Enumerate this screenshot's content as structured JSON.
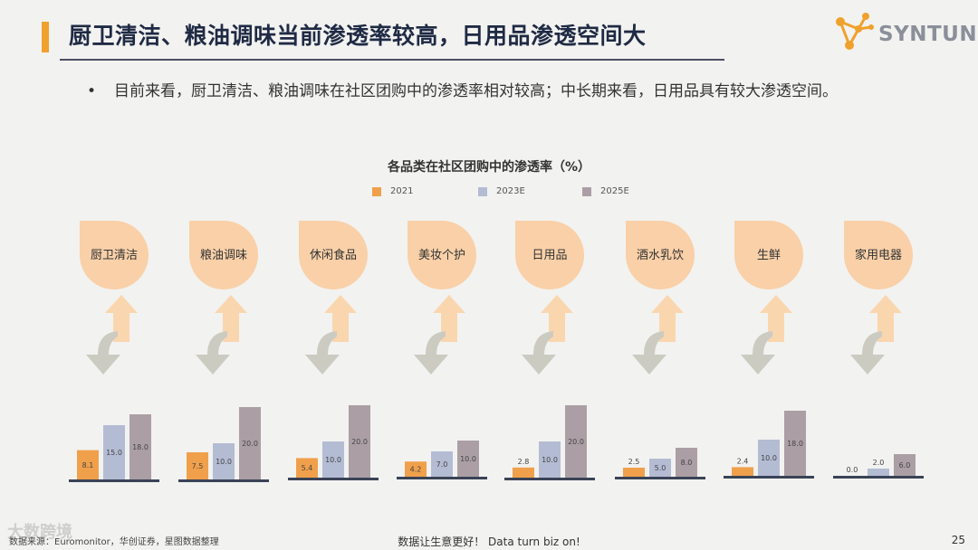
{
  "header": {
    "title": "厨卫清洁、粮油调味当前渗透率较高，日用品渗透空间大",
    "logo_text": "SYNTUN"
  },
  "bullet": {
    "symbol": "•",
    "text": "目前来看，厨卫清洁、粮油调味在社区团购中的渗透率相对较高；中长期来看，日用品具有较大渗透空间。"
  },
  "chart_data": {
    "type": "bar",
    "title": "各品类在社区团购中的渗透率（%）",
    "categories": [
      "厨卫清洁",
      "粮油调味",
      "休闲食品",
      "美妆个护",
      "日用品",
      "酒水乳饮",
      "生鲜",
      "家用电器"
    ],
    "series": [
      {
        "name": "2021",
        "values": [
          8.1,
          7.5,
          5.4,
          4.2,
          2.8,
          2.5,
          2.4,
          0.0
        ],
        "color": "#f0a04b"
      },
      {
        "name": "2023E",
        "values": [
          15.0,
          10.0,
          10.0,
          7.0,
          10.0,
          5.0,
          10.0,
          2.0
        ],
        "color": "#b4bcd4"
      },
      {
        "name": "2025E",
        "values": [
          18.0,
          20.0,
          20.0,
          10.0,
          20.0,
          8.0,
          18.0,
          6.0
        ],
        "color": "#ab9fa5"
      }
    ],
    "value_labels": [
      [
        "8.1",
        "15.0",
        "18.0"
      ],
      [
        "7.5",
        "10.0",
        "20.0"
      ],
      [
        "5.4",
        "10.0",
        "20.0"
      ],
      [
        "4.2",
        "7.0",
        "10.0"
      ],
      [
        "2.8",
        "10.0",
        "20.0"
      ],
      [
        "2.5",
        "5.0",
        "8.0"
      ],
      [
        "2.4",
        "10.0",
        "18.0"
      ],
      [
        "0.0",
        "2.0",
        "6.0"
      ]
    ],
    "ylim": [
      0,
      20
    ],
    "legend_position": "top",
    "grid": false
  },
  "colors": {
    "accent": "#f0a12c",
    "bubble": "#f9d0a8",
    "arrow_up": "#fad6af",
    "arrow_down": "#cbcbc2",
    "baseline": "#3a4356"
  },
  "footer": {
    "source": "数据来源：Euromonitor，华创证券，星图数据整理",
    "slogan": "数据让生意更好！ Data turn biz on!",
    "page": "25",
    "watermark": "大数跨境"
  }
}
